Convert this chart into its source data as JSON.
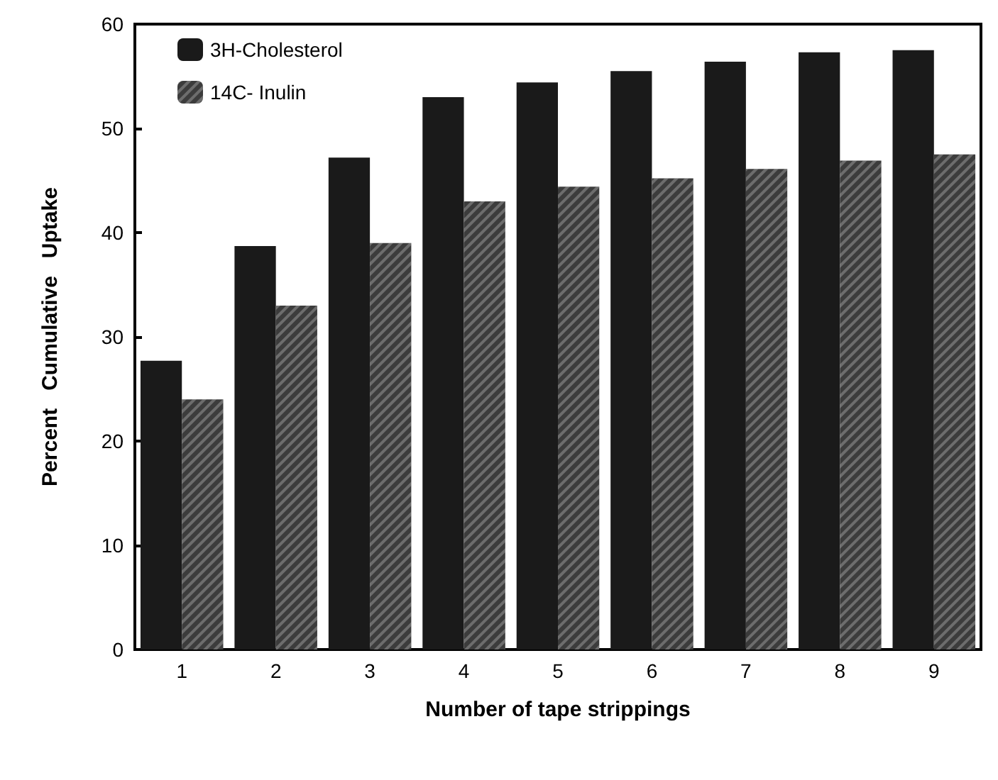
{
  "chart_data": {
    "type": "bar",
    "xlabel": "Number of tape strippings",
    "ylabel": "Percent   Cumulative   Uptake",
    "categories": [
      "1",
      "2",
      "3",
      "4",
      "5",
      "6",
      "7",
      "8",
      "9"
    ],
    "series": [
      {
        "name": "3H-Cholesterol",
        "color": "#1a1a1a",
        "values": [
          27.7,
          38.7,
          47.2,
          53,
          54.4,
          55.5,
          56.4,
          57.3,
          57.5
        ]
      },
      {
        "name": "14C- Inulin",
        "color": "#3c3c3c",
        "values": [
          24,
          33,
          39,
          43,
          44.4,
          45.2,
          46.1,
          46.9,
          47.5
        ]
      }
    ],
    "ylim": [
      0,
      60
    ],
    "yticks": [
      0,
      10,
      20,
      30,
      40,
      50,
      60
    ],
    "grid": false,
    "legend": "top left"
  }
}
